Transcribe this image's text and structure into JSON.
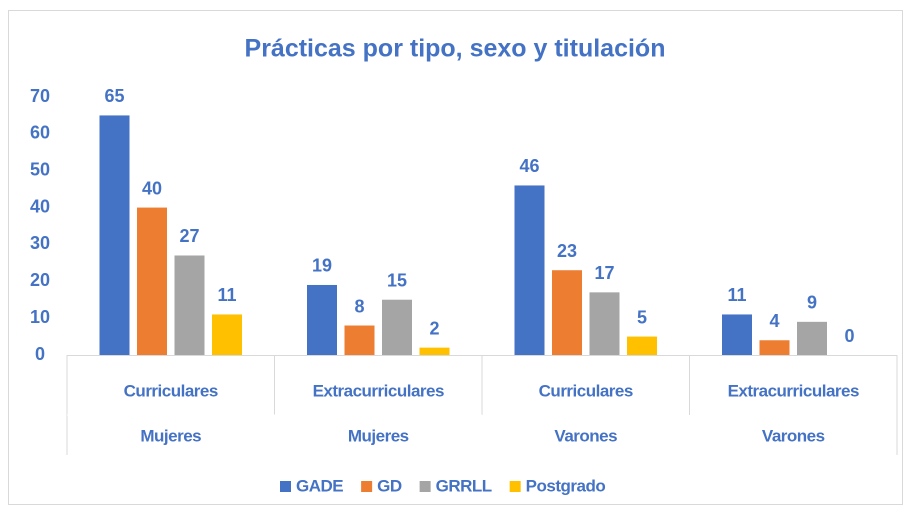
{
  "chart_data": {
    "type": "bar",
    "title": "Prácticas por tipo, sexo y titulación",
    "categories": [
      [
        "Curriculares",
        "Mujeres"
      ],
      [
        "Extracurriculares",
        "Mujeres"
      ],
      [
        "Curriculares",
        "Varones"
      ],
      [
        "Extracurriculares",
        "Varones"
      ]
    ],
    "series": [
      {
        "name": "GADE",
        "color": "#4472c4",
        "values": [
          65,
          19,
          46,
          11
        ]
      },
      {
        "name": "GD",
        "color": "#ed7d31",
        "values": [
          40,
          8,
          23,
          4
        ]
      },
      {
        "name": "GRRLL",
        "color": "#a5a5a5",
        "values": [
          27,
          15,
          17,
          9
        ]
      },
      {
        "name": "Postgrado",
        "color": "#ffc000",
        "values": [
          11,
          2,
          5,
          0
        ]
      }
    ],
    "ylim": [
      0,
      70
    ],
    "yticks": [
      0,
      10,
      20,
      30,
      40,
      50,
      60,
      70
    ],
    "grid": false,
    "legend": "bottom"
  }
}
